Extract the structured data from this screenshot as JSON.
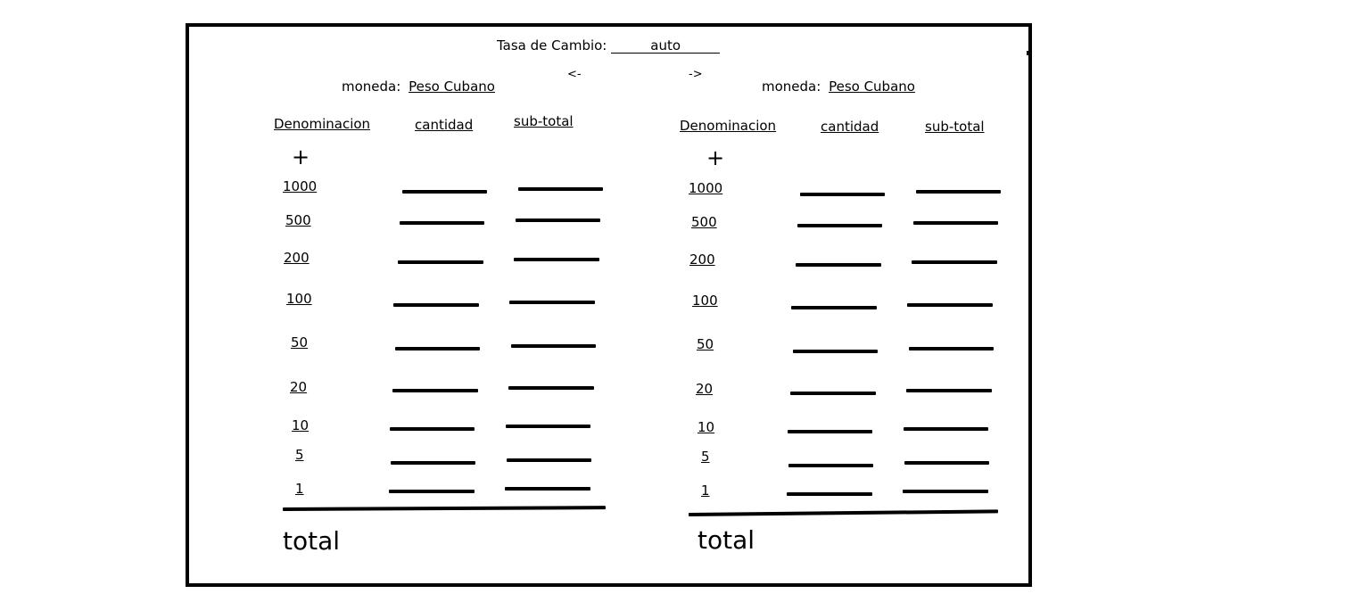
{
  "header": {
    "rate_label": "Tasa de Cambio:",
    "rate_value": "auto",
    "arrow_left": "<-",
    "arrow_right": "->"
  },
  "left": {
    "currency_label": "moneda:",
    "currency_value": "Peso Cubano",
    "col_denomination": "Denominacion",
    "col_quantity": "cantidad",
    "col_subtotal": "sub-total",
    "add_symbol": "+",
    "denominations": [
      "1000",
      "500",
      "200",
      "100",
      "50",
      "20",
      "10",
      "5",
      "1"
    ],
    "total_label": "total"
  },
  "right": {
    "currency_label": "moneda:",
    "currency_value": "Peso Cubano",
    "col_denomination": "Denominacion",
    "col_quantity": "cantidad",
    "col_subtotal": "sub-total",
    "add_symbol": "+",
    "denominations": [
      "1000",
      "500",
      "200",
      "100",
      "50",
      "20",
      "10",
      "5",
      "1"
    ],
    "total_label": "total"
  }
}
